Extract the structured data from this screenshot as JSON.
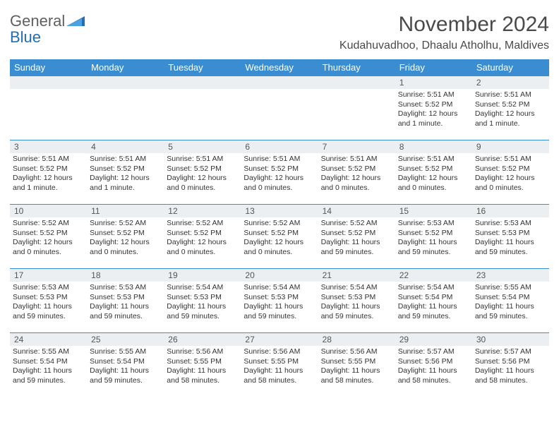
{
  "logo": {
    "word1": "General",
    "word2": "Blue",
    "tri_color": "#1e6fb8"
  },
  "title": {
    "month": "November 2024",
    "location": "Kudahuvadhoo, Dhaalu Atholhu, Maldives"
  },
  "colors": {
    "header_bg": "#3b8dd1",
    "header_text": "#ffffff",
    "daynum_bg": "#eceff1",
    "cell_border": "#3b8dd1"
  },
  "weekdays": [
    "Sunday",
    "Monday",
    "Tuesday",
    "Wednesday",
    "Thursday",
    "Friday",
    "Saturday"
  ],
  "weeks": [
    [
      {
        "day": "",
        "sunrise": "",
        "sunset": "",
        "daylight": ""
      },
      {
        "day": "",
        "sunrise": "",
        "sunset": "",
        "daylight": ""
      },
      {
        "day": "",
        "sunrise": "",
        "sunset": "",
        "daylight": ""
      },
      {
        "day": "",
        "sunrise": "",
        "sunset": "",
        "daylight": ""
      },
      {
        "day": "",
        "sunrise": "",
        "sunset": "",
        "daylight": ""
      },
      {
        "day": "1",
        "sunrise": "Sunrise: 5:51 AM",
        "sunset": "Sunset: 5:52 PM",
        "daylight": "Daylight: 12 hours and 1 minute."
      },
      {
        "day": "2",
        "sunrise": "Sunrise: 5:51 AM",
        "sunset": "Sunset: 5:52 PM",
        "daylight": "Daylight: 12 hours and 1 minute."
      }
    ],
    [
      {
        "day": "3",
        "sunrise": "Sunrise: 5:51 AM",
        "sunset": "Sunset: 5:52 PM",
        "daylight": "Daylight: 12 hours and 1 minute."
      },
      {
        "day": "4",
        "sunrise": "Sunrise: 5:51 AM",
        "sunset": "Sunset: 5:52 PM",
        "daylight": "Daylight: 12 hours and 1 minute."
      },
      {
        "day": "5",
        "sunrise": "Sunrise: 5:51 AM",
        "sunset": "Sunset: 5:52 PM",
        "daylight": "Daylight: 12 hours and 0 minutes."
      },
      {
        "day": "6",
        "sunrise": "Sunrise: 5:51 AM",
        "sunset": "Sunset: 5:52 PM",
        "daylight": "Daylight: 12 hours and 0 minutes."
      },
      {
        "day": "7",
        "sunrise": "Sunrise: 5:51 AM",
        "sunset": "Sunset: 5:52 PM",
        "daylight": "Daylight: 12 hours and 0 minutes."
      },
      {
        "day": "8",
        "sunrise": "Sunrise: 5:51 AM",
        "sunset": "Sunset: 5:52 PM",
        "daylight": "Daylight: 12 hours and 0 minutes."
      },
      {
        "day": "9",
        "sunrise": "Sunrise: 5:51 AM",
        "sunset": "Sunset: 5:52 PM",
        "daylight": "Daylight: 12 hours and 0 minutes."
      }
    ],
    [
      {
        "day": "10",
        "sunrise": "Sunrise: 5:52 AM",
        "sunset": "Sunset: 5:52 PM",
        "daylight": "Daylight: 12 hours and 0 minutes."
      },
      {
        "day": "11",
        "sunrise": "Sunrise: 5:52 AM",
        "sunset": "Sunset: 5:52 PM",
        "daylight": "Daylight: 12 hours and 0 minutes."
      },
      {
        "day": "12",
        "sunrise": "Sunrise: 5:52 AM",
        "sunset": "Sunset: 5:52 PM",
        "daylight": "Daylight: 12 hours and 0 minutes."
      },
      {
        "day": "13",
        "sunrise": "Sunrise: 5:52 AM",
        "sunset": "Sunset: 5:52 PM",
        "daylight": "Daylight: 12 hours and 0 minutes."
      },
      {
        "day": "14",
        "sunrise": "Sunrise: 5:52 AM",
        "sunset": "Sunset: 5:52 PM",
        "daylight": "Daylight: 11 hours and 59 minutes."
      },
      {
        "day": "15",
        "sunrise": "Sunrise: 5:53 AM",
        "sunset": "Sunset: 5:52 PM",
        "daylight": "Daylight: 11 hours and 59 minutes."
      },
      {
        "day": "16",
        "sunrise": "Sunrise: 5:53 AM",
        "sunset": "Sunset: 5:53 PM",
        "daylight": "Daylight: 11 hours and 59 minutes."
      }
    ],
    [
      {
        "day": "17",
        "sunrise": "Sunrise: 5:53 AM",
        "sunset": "Sunset: 5:53 PM",
        "daylight": "Daylight: 11 hours and 59 minutes."
      },
      {
        "day": "18",
        "sunrise": "Sunrise: 5:53 AM",
        "sunset": "Sunset: 5:53 PM",
        "daylight": "Daylight: 11 hours and 59 minutes."
      },
      {
        "day": "19",
        "sunrise": "Sunrise: 5:54 AM",
        "sunset": "Sunset: 5:53 PM",
        "daylight": "Daylight: 11 hours and 59 minutes."
      },
      {
        "day": "20",
        "sunrise": "Sunrise: 5:54 AM",
        "sunset": "Sunset: 5:53 PM",
        "daylight": "Daylight: 11 hours and 59 minutes."
      },
      {
        "day": "21",
        "sunrise": "Sunrise: 5:54 AM",
        "sunset": "Sunset: 5:53 PM",
        "daylight": "Daylight: 11 hours and 59 minutes."
      },
      {
        "day": "22",
        "sunrise": "Sunrise: 5:54 AM",
        "sunset": "Sunset: 5:54 PM",
        "daylight": "Daylight: 11 hours and 59 minutes."
      },
      {
        "day": "23",
        "sunrise": "Sunrise: 5:55 AM",
        "sunset": "Sunset: 5:54 PM",
        "daylight": "Daylight: 11 hours and 59 minutes."
      }
    ],
    [
      {
        "day": "24",
        "sunrise": "Sunrise: 5:55 AM",
        "sunset": "Sunset: 5:54 PM",
        "daylight": "Daylight: 11 hours and 59 minutes."
      },
      {
        "day": "25",
        "sunrise": "Sunrise: 5:55 AM",
        "sunset": "Sunset: 5:54 PM",
        "daylight": "Daylight: 11 hours and 59 minutes."
      },
      {
        "day": "26",
        "sunrise": "Sunrise: 5:56 AM",
        "sunset": "Sunset: 5:55 PM",
        "daylight": "Daylight: 11 hours and 58 minutes."
      },
      {
        "day": "27",
        "sunrise": "Sunrise: 5:56 AM",
        "sunset": "Sunset: 5:55 PM",
        "daylight": "Daylight: 11 hours and 58 minutes."
      },
      {
        "day": "28",
        "sunrise": "Sunrise: 5:56 AM",
        "sunset": "Sunset: 5:55 PM",
        "daylight": "Daylight: 11 hours and 58 minutes."
      },
      {
        "day": "29",
        "sunrise": "Sunrise: 5:57 AM",
        "sunset": "Sunset: 5:56 PM",
        "daylight": "Daylight: 11 hours and 58 minutes."
      },
      {
        "day": "30",
        "sunrise": "Sunrise: 5:57 AM",
        "sunset": "Sunset: 5:56 PM",
        "daylight": "Daylight: 11 hours and 58 minutes."
      }
    ]
  ]
}
